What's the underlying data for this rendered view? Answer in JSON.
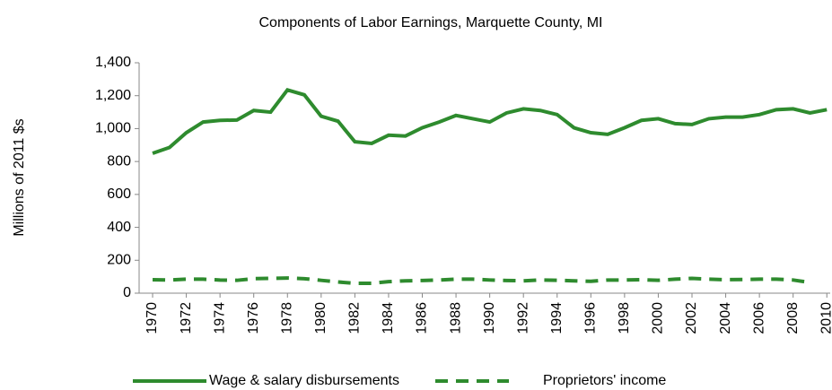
{
  "chart_data": {
    "type": "line",
    "title": "Components of Labor Earnings, Marquette County, MI",
    "ylabel": "Millions of 2011 $s",
    "x": [
      1970,
      1971,
      1972,
      1973,
      1974,
      1975,
      1976,
      1977,
      1978,
      1979,
      1980,
      1981,
      1982,
      1983,
      1984,
      1985,
      1986,
      1987,
      1988,
      1989,
      1990,
      1991,
      1992,
      1993,
      1994,
      1995,
      1996,
      1997,
      1998,
      1999,
      2000,
      2001,
      2002,
      2003,
      2004,
      2005,
      2006,
      2007,
      2008,
      2009,
      2010
    ],
    "xlim": [
      1969.2,
      2010.2
    ],
    "xticks": [
      1970,
      1972,
      1974,
      1976,
      1978,
      1980,
      1982,
      1984,
      1986,
      1988,
      1990,
      1992,
      1994,
      1996,
      1998,
      2000,
      2002,
      2004,
      2006,
      2008,
      2010
    ],
    "ylim": [
      0,
      1400
    ],
    "yticks": [
      0,
      200,
      400,
      600,
      800,
      {
        "value": 1000,
        "label": "1,000"
      },
      {
        "value": 1200,
        "label": "1,200"
      },
      {
        "value": 1400,
        "label": "1,400"
      }
    ],
    "series": [
      {
        "name": "Wage & salary disbursements",
        "color": "#2e8b2e",
        "dash": false,
        "values": [
          850,
          885,
          975,
          1040,
          1050,
          1052,
          1110,
          1100,
          1235,
          1205,
          1075,
          1045,
          920,
          910,
          960,
          955,
          1005,
          1040,
          1080,
          1060,
          1040,
          1095,
          1120,
          1110,
          1085,
          1005,
          975,
          965,
          1005,
          1050,
          1060,
          1030,
          1025,
          1060,
          1070,
          1070,
          1085,
          1115,
          1120,
          1095,
          1115
        ]
      },
      {
        "name": "Proprietors' income",
        "color": "#2e8b2e",
        "dash": true,
        "values": [
          82,
          80,
          85,
          85,
          80,
          78,
          88,
          90,
          92,
          88,
          78,
          68,
          60,
          60,
          70,
          75,
          77,
          80,
          85,
          85,
          80,
          77,
          75,
          80,
          78,
          75,
          72,
          80,
          80,
          82,
          78,
          85,
          90,
          85,
          82,
          83,
          85,
          85,
          80,
          65,
          null
        ]
      }
    ]
  }
}
